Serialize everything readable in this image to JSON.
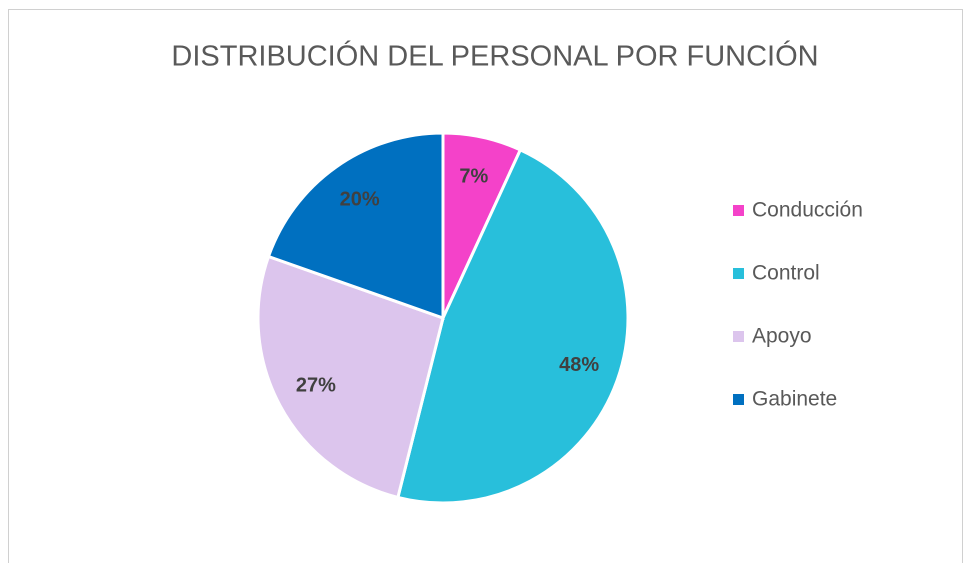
{
  "chart_data": {
    "type": "pie",
    "title": "DISTRIBUCIÓN DEL PERSONAL POR FUNCIÓN",
    "categories": [
      "Conducción",
      "Control",
      "Apoyo",
      "Gabinete"
    ],
    "values": [
      7,
      48,
      27,
      20
    ],
    "value_labels": [
      "7%",
      "48%",
      "27%",
      "20%"
    ],
    "colors": [
      "#f442c9",
      "#28bfdb",
      "#dcc5ed",
      "#0070c0"
    ],
    "legend": "right"
  }
}
